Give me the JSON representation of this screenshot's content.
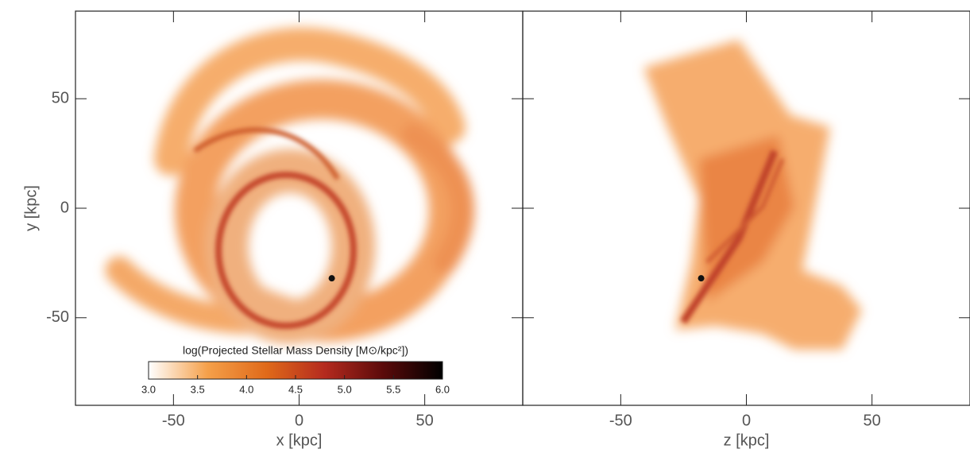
{
  "chart_data": [
    {
      "type": "image",
      "x_label": "x [kpc]",
      "y_label": "y [kpc]",
      "xlim": [
        -89,
        89
      ],
      "ylim": [
        -90,
        90
      ],
      "xticks": [
        -50,
        0,
        50
      ],
      "yticks": [
        -50,
        0,
        50
      ],
      "points": {
        "x": [
          13
        ],
        "y": [
          -32
        ],
        "color": "#111111"
      },
      "colorbar": {
        "title": "log(Projected Stellar Mass Density [M⊙/kpc²])",
        "lim": [
          3,
          6
        ],
        "ticks": [
          {
            "value": 3,
            "label": "3.0"
          },
          {
            "value": 3.5,
            "label": "3.5"
          },
          {
            "value": 4,
            "label": "4.0"
          },
          {
            "value": 4.5,
            "label": "4.5"
          },
          {
            "value": 5,
            "label": "5.0"
          },
          {
            "value": 5.5,
            "label": "5.5"
          },
          {
            "value": 6,
            "label": "6.0"
          }
        ],
        "colors": [
          "#ffffff",
          "#f5a04a",
          "#e06a1a",
          "#b42a1e",
          "#5a0a0a",
          "#000000"
        ]
      }
    },
    {
      "type": "image",
      "x_label": "z [kpc]",
      "xlim": [
        -89,
        89
      ],
      "ylim": [
        -90,
        90
      ],
      "xticks": [
        -50,
        0,
        50
      ],
      "yticks": [
        -50,
        0,
        50
      ],
      "points": {
        "x": [
          -18
        ],
        "y": [
          -32
        ],
        "color": "#111111"
      }
    }
  ]
}
